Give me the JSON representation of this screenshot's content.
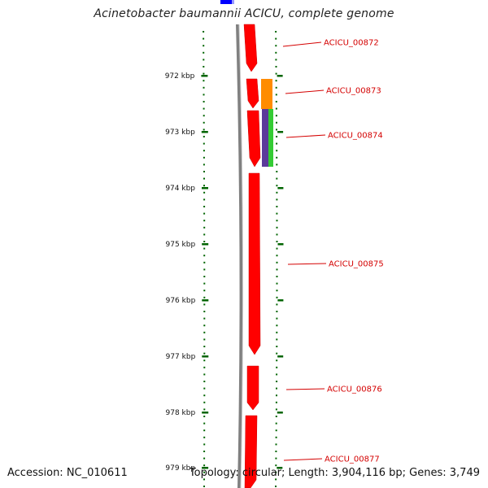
{
  "title": "Acinetobacter baumannii ACICU, complete genome",
  "footer": {
    "accession": "Accession: NC_010611",
    "summary": "Topology: circular; Length: 3,904,116 bp; Genes: 3,749"
  },
  "colors": {
    "cds": "#ff0000",
    "backbone": "#808080",
    "ticks": "#006400",
    "label": "#d40000",
    "blue": "#0000ff",
    "orange": "#ff8c00",
    "purple": "#5b3a9a",
    "green": "#33cc33"
  },
  "ruler": {
    "ticks": [
      {
        "label": "972 kbp"
      },
      {
        "label": "973 kbp"
      },
      {
        "label": "974 kbp"
      },
      {
        "label": "975 kbp"
      },
      {
        "label": "976 kbp"
      },
      {
        "label": "977 kbp"
      },
      {
        "label": "978 kbp"
      },
      {
        "label": "979 kbp"
      }
    ]
  },
  "genes": [
    {
      "label": "ACICU_00872"
    },
    {
      "label": "ACICU_00873"
    },
    {
      "label": "ACICU_00874"
    },
    {
      "label": "ACICU_00875"
    },
    {
      "label": "ACICU_00876"
    },
    {
      "label": "ACICU_00877"
    }
  ]
}
